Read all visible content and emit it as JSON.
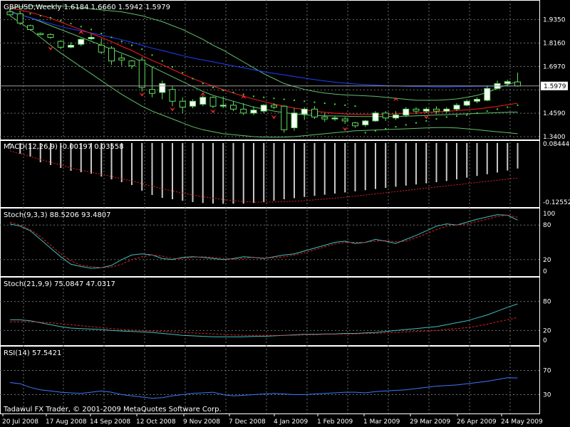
{
  "chart_data": [
    {
      "panel": "price",
      "type": "candlestick",
      "title": "GBPUSD,Weekly  1.6184 1.6660 1.5942 1.5979",
      "y_ticks": [
        "1.9350",
        "1.8160",
        "1.6970",
        "1.5979",
        "1.4590",
        "1.3400"
      ],
      "ylim": [
        1.34,
        1.97
      ],
      "current_price": "1.5979",
      "colors": {
        "up": "#ffffff",
        "down": "#ffffff",
        "grid": "#6e6e6e",
        "ma_blue": "#1f3fff",
        "ma_red": "#ff1a1a",
        "band_green": "#5fbf6a",
        "fractal": "#ff2a2a",
        "sar": "#3ddc3d"
      },
      "candles": [
        {
          "o": 1.975,
          "h": 1.98,
          "l": 1.955,
          "c": 1.96
        },
        {
          "o": 1.965,
          "h": 1.97,
          "l": 1.908,
          "c": 1.918
        },
        {
          "o": 1.905,
          "h": 1.91,
          "l": 1.88,
          "c": 1.885
        },
        {
          "o": 1.865,
          "h": 1.87,
          "l": 1.855,
          "c": 1.859
        },
        {
          "o": 1.86,
          "h": 1.865,
          "l": 1.838,
          "c": 1.845
        },
        {
          "o": 1.825,
          "h": 1.83,
          "l": 1.785,
          "c": 1.795
        },
        {
          "o": 1.795,
          "h": 1.82,
          "l": 1.79,
          "c": 1.805
        },
        {
          "o": 1.81,
          "h": 1.84,
          "l": 1.8,
          "c": 1.835
        },
        {
          "o": 1.838,
          "h": 1.862,
          "l": 1.83,
          "c": 1.845
        },
        {
          "o": 1.805,
          "h": 1.84,
          "l": 1.76,
          "c": 1.77
        },
        {
          "o": 1.79,
          "h": 1.8,
          "l": 1.705,
          "c": 1.725
        },
        {
          "o": 1.74,
          "h": 1.76,
          "l": 1.7,
          "c": 1.73
        },
        {
          "o": 1.725,
          "h": 1.73,
          "l": 1.685,
          "c": 1.7
        },
        {
          "o": 1.73,
          "h": 1.745,
          "l": 1.57,
          "c": 1.59
        },
        {
          "o": 1.58,
          "h": 1.695,
          "l": 1.54,
          "c": 1.56
        },
        {
          "o": 1.565,
          "h": 1.625,
          "l": 1.53,
          "c": 1.61
        },
        {
          "o": 1.58,
          "h": 1.6,
          "l": 1.495,
          "c": 1.52
        },
        {
          "o": 1.52,
          "h": 1.54,
          "l": 1.46,
          "c": 1.49
        },
        {
          "o": 1.495,
          "h": 1.53,
          "l": 1.485,
          "c": 1.52
        },
        {
          "o": 1.505,
          "h": 1.55,
          "l": 1.495,
          "c": 1.54
        },
        {
          "o": 1.54,
          "h": 1.545,
          "l": 1.485,
          "c": 1.495
        },
        {
          "o": 1.495,
          "h": 1.545,
          "l": 1.485,
          "c": 1.5
        },
        {
          "o": 1.5,
          "h": 1.52,
          "l": 1.47,
          "c": 1.48
        },
        {
          "o": 1.48,
          "h": 1.51,
          "l": 1.45,
          "c": 1.46
        },
        {
          "o": 1.46,
          "h": 1.495,
          "l": 1.45,
          "c": 1.475
        },
        {
          "o": 1.47,
          "h": 1.505,
          "l": 1.46,
          "c": 1.5
        },
        {
          "o": 1.5,
          "h": 1.51,
          "l": 1.48,
          "c": 1.49
        },
        {
          "o": 1.495,
          "h": 1.5,
          "l": 1.36,
          "c": 1.375
        },
        {
          "o": 1.385,
          "h": 1.485,
          "l": 1.37,
          "c": 1.46
        },
        {
          "o": 1.455,
          "h": 1.49,
          "l": 1.425,
          "c": 1.48
        },
        {
          "o": 1.48,
          "h": 1.495,
          "l": 1.43,
          "c": 1.44
        },
        {
          "o": 1.44,
          "h": 1.46,
          "l": 1.415,
          "c": 1.43
        },
        {
          "o": 1.43,
          "h": 1.445,
          "l": 1.42,
          "c": 1.435
        },
        {
          "o": 1.43,
          "h": 1.44,
          "l": 1.405,
          "c": 1.42
        },
        {
          "o": 1.41,
          "h": 1.415,
          "l": 1.385,
          "c": 1.395
        },
        {
          "o": 1.4,
          "h": 1.425,
          "l": 1.39,
          "c": 1.42
        },
        {
          "o": 1.42,
          "h": 1.47,
          "l": 1.415,
          "c": 1.46
        },
        {
          "o": 1.46,
          "h": 1.47,
          "l": 1.42,
          "c": 1.435
        },
        {
          "o": 1.435,
          "h": 1.47,
          "l": 1.425,
          "c": 1.45
        },
        {
          "o": 1.45,
          "h": 1.49,
          "l": 1.44,
          "c": 1.48
        },
        {
          "o": 1.48,
          "h": 1.49,
          "l": 1.455,
          "c": 1.47
        },
        {
          "o": 1.47,
          "h": 1.49,
          "l": 1.46,
          "c": 1.48
        },
        {
          "o": 1.48,
          "h": 1.495,
          "l": 1.455,
          "c": 1.47
        },
        {
          "o": 1.47,
          "h": 1.49,
          "l": 1.46,
          "c": 1.48
        },
        {
          "o": 1.48,
          "h": 1.51,
          "l": 1.47,
          "c": 1.5
        },
        {
          "o": 1.5,
          "h": 1.53,
          "l": 1.495,
          "c": 1.52
        },
        {
          "o": 1.52,
          "h": 1.54,
          "l": 1.51,
          "c": 1.53
        },
        {
          "o": 1.525,
          "h": 1.6,
          "l": 1.52,
          "c": 1.585
        },
        {
          "o": 1.585,
          "h": 1.625,
          "l": 1.58,
          "c": 1.61
        },
        {
          "o": 1.61,
          "h": 1.63,
          "l": 1.595,
          "c": 1.62
        },
        {
          "o": 1.6184,
          "h": 1.666,
          "l": 1.5942,
          "c": 1.5979
        }
      ],
      "ma_blue": [
        1.98,
        1.96,
        1.945,
        1.93,
        1.915,
        1.9,
        1.888,
        1.878,
        1.868,
        1.857,
        1.845,
        1.833,
        1.82,
        1.805,
        1.79,
        1.778,
        1.765,
        1.752,
        1.74,
        1.73,
        1.72,
        1.71,
        1.7,
        1.69,
        1.68,
        1.67,
        1.662,
        1.654,
        1.646,
        1.638,
        1.63,
        1.623,
        1.617,
        1.612,
        1.608,
        1.605,
        1.602,
        1.6,
        1.598,
        1.596,
        1.595,
        1.594,
        1.593,
        1.593,
        1.594,
        1.595,
        1.596,
        1.596,
        1.597,
        1.5975,
        1.598
      ],
      "ma_red": [
        1.995,
        1.985,
        1.972,
        1.958,
        1.942,
        1.923,
        1.903,
        1.884,
        1.865,
        1.845,
        1.823,
        1.8,
        1.778,
        1.752,
        1.728,
        1.706,
        1.682,
        1.658,
        1.636,
        1.616,
        1.597,
        1.579,
        1.562,
        1.546,
        1.531,
        1.518,
        1.506,
        1.495,
        1.486,
        1.478,
        1.47,
        1.464,
        1.459,
        1.456,
        1.454,
        1.453,
        1.453,
        1.454,
        1.456,
        1.458,
        1.46,
        1.463,
        1.466,
        1.469,
        1.472,
        1.476,
        1.481,
        1.487,
        1.494,
        1.502,
        1.51
      ],
      "band_upper": [
        1.995,
        2.0,
        2.005,
        2.005,
        2.005,
        2.005,
        2.0,
        1.995,
        1.99,
        1.985,
        1.98,
        1.975,
        1.965,
        1.955,
        1.94,
        1.925,
        1.905,
        1.885,
        1.86,
        1.835,
        1.805,
        1.78,
        1.75,
        1.72,
        1.69,
        1.66,
        1.635,
        1.61,
        1.595,
        1.58,
        1.57,
        1.562,
        1.556,
        1.552,
        1.55,
        1.548,
        1.545,
        1.54,
        1.535,
        1.53,
        1.525,
        1.525,
        1.525,
        1.528,
        1.532,
        1.54,
        1.55,
        1.565,
        1.585,
        1.605,
        1.62
      ],
      "band_middle": [
        1.975,
        1.96,
        1.945,
        1.925,
        1.905,
        1.885,
        1.865,
        1.845,
        1.825,
        1.805,
        1.785,
        1.765,
        1.745,
        1.72,
        1.695,
        1.67,
        1.645,
        1.62,
        1.595,
        1.57,
        1.55,
        1.535,
        1.52,
        1.505,
        1.49,
        1.48,
        1.47,
        1.462,
        1.456,
        1.451,
        1.448,
        1.446,
        1.445,
        1.444,
        1.443,
        1.442,
        1.442,
        1.442,
        1.443,
        1.444,
        1.446,
        1.448,
        1.45,
        1.452,
        1.454,
        1.456,
        1.458,
        1.46,
        1.462,
        1.464,
        1.465
      ],
      "band_lower": [
        1.955,
        1.92,
        1.885,
        1.845,
        1.805,
        1.765,
        1.73,
        1.695,
        1.66,
        1.625,
        1.59,
        1.555,
        1.525,
        1.495,
        1.47,
        1.45,
        1.43,
        1.41,
        1.39,
        1.375,
        1.365,
        1.355,
        1.35,
        1.345,
        1.34,
        1.338,
        1.337,
        1.338,
        1.34,
        1.345,
        1.35,
        1.355,
        1.36,
        1.365,
        1.37,
        1.372,
        1.374,
        1.376,
        1.378,
        1.38,
        1.382,
        1.384,
        1.386,
        1.386,
        1.384,
        1.38,
        1.375,
        1.37,
        1.365,
        1.36,
        1.355
      ],
      "sar": [
        1.985,
        1.975,
        1.965,
        1.955,
        1.945,
        1.93,
        1.915,
        1.9,
        1.885,
        1.865,
        1.845,
        1.825,
        1.805,
        1.785,
        1.755,
        1.725,
        1.695,
        1.665,
        1.635,
        1.61,
        1.59,
        1.575,
        1.565,
        1.555,
        1.545,
        1.54,
        1.535,
        1.53,
        1.525,
        1.52,
        1.515,
        1.51,
        1.505,
        1.5,
        1.495,
        1.36,
        1.37,
        1.38,
        1.39,
        1.4,
        1.41,
        1.42,
        1.43,
        1.44,
        1.445,
        1.45,
        1.46,
        1.47,
        1.48,
        1.49,
        1.5
      ],
      "fractals": [
        {
          "i": 7,
          "price": 1.87,
          "dir": "up"
        },
        {
          "i": 4,
          "price": 1.79,
          "dir": "down"
        },
        {
          "i": 13,
          "price": 1.555,
          "dir": "down"
        },
        {
          "i": 16,
          "price": 1.48,
          "dir": "down"
        },
        {
          "i": 19,
          "price": 1.555,
          "dir": "up"
        },
        {
          "i": 20,
          "price": 1.47,
          "dir": "down"
        },
        {
          "i": 23,
          "price": 1.542,
          "dir": "up"
        },
        {
          "i": 26,
          "price": 1.44,
          "dir": "down"
        },
        {
          "i": 33,
          "price": 1.38,
          "dir": "down"
        },
        {
          "i": 38,
          "price": 1.53,
          "dir": "up"
        },
        {
          "i": 41,
          "price": 1.44,
          "dir": "down"
        }
      ]
    },
    {
      "panel": "macd",
      "type": "bar",
      "title": "MACD(12,26,9) -0.00197 0.03558",
      "y_ticks": [
        "0.08444",
        "-0.12552"
      ],
      "ylim": [
        -0.13,
        0.085
      ],
      "histogram": [
        0.08,
        0.05,
        0.04,
        0.02,
        0.01,
        0.0,
        -0.01,
        -0.015,
        -0.02,
        -0.03,
        -0.04,
        -0.05,
        -0.06,
        -0.08,
        -0.095,
        -0.105,
        -0.11,
        -0.115,
        -0.12,
        -0.123,
        -0.125,
        -0.126,
        -0.1255,
        -0.125,
        -0.123,
        -0.12,
        -0.115,
        -0.11,
        -0.106,
        -0.102,
        -0.098,
        -0.094,
        -0.09,
        -0.086,
        -0.082,
        -0.078,
        -0.074,
        -0.07,
        -0.066,
        -0.062,
        -0.058,
        -0.054,
        -0.05,
        -0.046,
        -0.04,
        -0.034,
        -0.028,
        -0.022,
        -0.016,
        -0.009,
        -0.002
      ],
      "signal": [
        0.06,
        0.05,
        0.04,
        0.03,
        0.02,
        0.01,
        0.0,
        -0.008,
        -0.015,
        -0.022,
        -0.03,
        -0.038,
        -0.046,
        -0.055,
        -0.064,
        -0.073,
        -0.081,
        -0.088,
        -0.095,
        -0.101,
        -0.106,
        -0.111,
        -0.115,
        -0.118,
        -0.12,
        -0.12,
        -0.1195,
        -0.1185,
        -0.117,
        -0.115,
        -0.112,
        -0.109,
        -0.106,
        -0.103,
        -0.099,
        -0.095,
        -0.091,
        -0.087,
        -0.083,
        -0.079,
        -0.075,
        -0.071,
        -0.067,
        -0.063,
        -0.059,
        -0.055,
        -0.051,
        -0.047,
        -0.043,
        -0.039,
        -0.0356
      ]
    },
    {
      "panel": "stoch1",
      "type": "line",
      "title": "Stoch(9,3,3) 88.5206 93.4807",
      "y_ticks": [
        "100",
        "80",
        "20",
        "0"
      ],
      "ylim": [
        0,
        100
      ],
      "main": [
        82,
        78,
        70,
        55,
        40,
        25,
        12,
        8,
        5,
        6,
        10,
        20,
        28,
        30,
        28,
        22,
        20,
        24,
        25,
        24,
        22,
        20,
        22,
        25,
        24,
        22,
        25,
        28,
        30,
        35,
        40,
        45,
        50,
        52,
        48,
        50,
        55,
        52,
        48,
        55,
        62,
        70,
        78,
        82,
        80,
        85,
        90,
        94,
        98,
        97,
        88.5
      ],
      "signal": [
        85,
        80,
        72,
        60,
        45,
        30,
        18,
        10,
        8,
        6,
        7,
        12,
        20,
        25,
        28,
        26,
        22,
        22,
        24,
        25,
        24,
        22,
        21,
        22,
        24,
        23,
        23,
        25,
        28,
        32,
        37,
        42,
        47,
        50,
        50,
        50,
        52,
        53,
        51,
        52,
        58,
        65,
        72,
        78,
        80,
        82,
        86,
        90,
        95,
        97,
        93.5
      ]
    },
    {
      "panel": "stoch2",
      "type": "line",
      "title": "Stoch(21,9,9) 75.0847 47.0317",
      "y_ticks": [
        "80",
        "20",
        "0"
      ],
      "ylim": [
        0,
        100
      ],
      "main": [
        42,
        42,
        40,
        36,
        32,
        28,
        25,
        24,
        23,
        22,
        20,
        19,
        18,
        17,
        16,
        14,
        12,
        10,
        9,
        8,
        7,
        7,
        7,
        7,
        8,
        8,
        9,
        10,
        11,
        12,
        12,
        13,
        13,
        14,
        14,
        15,
        16,
        18,
        20,
        22,
        24,
        26,
        28,
        32,
        36,
        40,
        46,
        52,
        60,
        68,
        75
      ],
      "signal": [
        38,
        38,
        38,
        37,
        36,
        34,
        32,
        30,
        28,
        26,
        24,
        22,
        21,
        20,
        19,
        18,
        17,
        16,
        15,
        14,
        13,
        12,
        11,
        10,
        10,
        10,
        10,
        10,
        10,
        11,
        11,
        12,
        12,
        13,
        13,
        14,
        14,
        15,
        16,
        17,
        18,
        19,
        20,
        22,
        24,
        26,
        29,
        33,
        38,
        42,
        47
      ]
    },
    {
      "panel": "rsi",
      "type": "line",
      "title": "RSI(14) 57.5421",
      "y_ticks": [
        "70",
        "30"
      ],
      "ylim": [
        0,
        100
      ],
      "values": [
        50,
        48,
        42,
        38,
        36,
        34,
        33,
        32,
        34,
        36,
        34,
        30,
        28,
        26,
        24,
        25,
        28,
        30,
        32,
        33,
        34,
        30,
        28,
        29,
        30,
        31,
        32,
        31,
        30,
        30,
        31,
        32,
        33,
        34,
        34,
        33,
        35,
        36,
        37,
        38,
        40,
        42,
        44,
        45,
        46,
        48,
        50,
        52,
        55,
        58,
        57.5
      ],
      "color": "#3a78ff"
    }
  ],
  "x_labels": [
    "20 Jul 2008",
    "17 Aug 2008",
    "14 Sep 2008",
    "12 Oct 2008",
    "9 Nov 2008",
    "7 Dec 2008",
    "4 Jan 2009",
    "1 Feb 2009",
    "1 Mar 2009",
    "29 Mar 2009",
    "26 Apr 2009",
    "24 May 2009"
  ],
  "copyright": "Tadawul FX Trader, © 2001-2009 MetaQuotes Software Corp."
}
